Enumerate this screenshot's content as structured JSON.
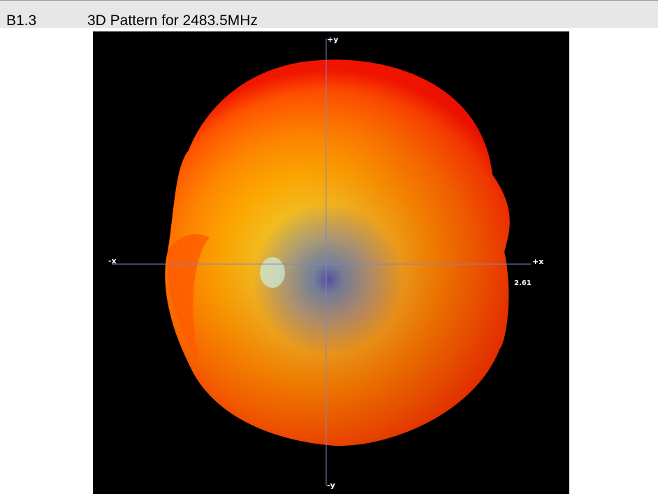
{
  "header": {
    "section": "B1.3",
    "title": "3D Pattern for 2483.5MHz"
  },
  "figure": {
    "axis_labels": {
      "top": "+y",
      "left": "-x",
      "right": "+x",
      "bottom": "-y"
    },
    "annotation": "2.61"
  }
}
